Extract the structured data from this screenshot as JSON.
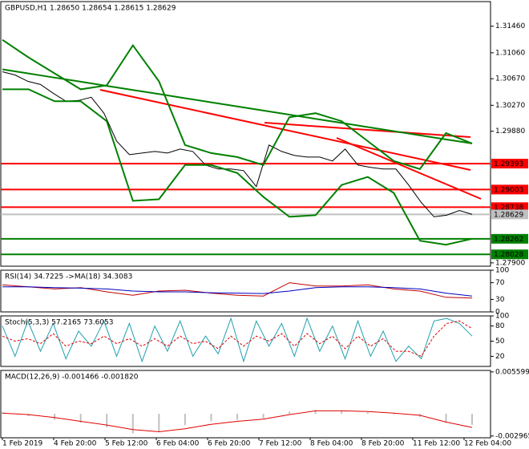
{
  "chart_data": [
    {
      "type": "line",
      "title": "GBPUSD,H1  1.28650 1.28654 1.28615 1.28629",
      "ylim": [
        1.2785,
        1.3183
      ],
      "yticks": [
        {
          "value": 1.3146,
          "label": "1.31460"
        },
        {
          "value": 1.3106,
          "label": "1.31060"
        },
        {
          "value": 1.3067,
          "label": "1.30670"
        },
        {
          "value": 1.3027,
          "label": "1.30270"
        },
        {
          "value": 1.2988,
          "label": "1.29880"
        },
        {
          "value": 1.279,
          "label": "1.27900"
        }
      ],
      "x_labels": [
        "1 Feb 2019",
        "4 Feb 20:00",
        "5 Feb 12:00",
        "6 Feb 04:00",
        "6 Feb 20:00",
        "7 Feb 12:00",
        "8 Feb 04:00",
        "8 Feb 20:00",
        "11 Feb 12:00",
        "12 Feb 04:00"
      ],
      "levels": [
        {
          "value": 1.29393,
          "color": "#ff0000"
        },
        {
          "value": 1.29003,
          "color": "#ff0000"
        },
        {
          "value": 1.28738,
          "color": "#ff0000"
        },
        {
          "value": 1.28629,
          "color": "#c0c0c0"
        },
        {
          "value": 1.28262,
          "color": "#008000"
        },
        {
          "value": 1.28028,
          "color": "#008000"
        }
      ],
      "series": [
        {
          "name": "Close",
          "color": "#000000",
          "values": [
            1.30775,
            1.30727,
            1.30631,
            1.30583,
            1.30451,
            1.30331,
            1.30343,
            1.30391,
            1.30151,
            1.29732,
            1.29528,
            1.29552,
            1.29576,
            1.29552,
            1.29612,
            1.29576,
            1.29372,
            1.29312,
            1.29312,
            1.29288,
            1.29048,
            1.29672,
            1.29576,
            1.29516,
            1.29492,
            1.29492,
            1.29432,
            1.29612,
            1.29372,
            1.29336,
            1.29312,
            1.29312,
            1.29072,
            1.28809,
            1.28593,
            1.28617,
            1.28688,
            1.28629
          ]
        },
        {
          "name": "BB upper",
          "color": "#008000",
          "values": [
            1.31255,
            1.30991,
            1.30751,
            1.30511,
            1.30571,
            1.31171,
            1.30631,
            1.29672,
            1.29552,
            1.29492,
            1.29372,
            1.30091,
            1.30151,
            1.30032,
            1.29732,
            1.29432,
            1.29312,
            1.29852,
            1.29696
          ]
        },
        {
          "name": "BB lower",
          "color": "#008000",
          "values": [
            1.30511,
            1.30511,
            1.30331,
            1.30331,
            1.30032,
            1.28833,
            1.28857,
            1.29372,
            1.29372,
            1.29252,
            1.28892,
            1.28593,
            1.28617,
            1.29072,
            1.29192,
            1.28952,
            1.28233,
            1.28173,
            1.28262
          ]
        },
        {
          "name": "MA",
          "color": "#008000",
          "values": [
            1.30811,
            1.30749,
            1.30687,
            1.30625,
            1.30563,
            1.30501,
            1.30439,
            1.30377,
            1.30315,
            1.30253,
            1.30191,
            1.30129,
            1.30067,
            1.30005,
            1.29943,
            1.29881,
            1.29819,
            1.29757,
            1.29696
          ]
        }
      ]
    },
    {
      "type": "line",
      "title": "RSI(14) 34.7225  ->MA(18) 34.3083",
      "ylim": [
        0,
        100
      ],
      "yticks": [
        100,
        70,
        30,
        0
      ],
      "series": [
        {
          "name": "RSI",
          "color": "#c00000",
          "values": [
            65,
            60,
            55,
            58,
            48,
            40,
            50,
            52,
            45,
            40,
            38,
            70,
            62,
            62,
            65,
            55,
            50,
            35,
            33
          ]
        },
        {
          "name": "MA",
          "color": "#0000c0",
          "values": [
            60,
            60,
            58,
            57,
            55,
            50,
            48,
            48,
            46,
            45,
            44,
            50,
            58,
            60,
            60,
            58,
            55,
            45,
            38
          ]
        }
      ]
    },
    {
      "type": "line",
      "title": "Stoch(5,3,3) 57.2165 73.6053",
      "ylim": [
        0,
        100
      ],
      "yticks": [
        100,
        80,
        50,
        20
      ],
      "series": [
        {
          "name": "Main",
          "color": "#20a0b0",
          "values": [
            80,
            20,
            90,
            30,
            85,
            15,
            70,
            40,
            90,
            20,
            85,
            10,
            80,
            30,
            90,
            20,
            60,
            25,
            95,
            10,
            90,
            40,
            85,
            20,
            95,
            30,
            80,
            15,
            90,
            20,
            70,
            10,
            40,
            15,
            90,
            95,
            85,
            60
          ]
        },
        {
          "name": "Signal",
          "color": "#e00000",
          "dash": true,
          "values": [
            60,
            50,
            55,
            45,
            65,
            40,
            50,
            45,
            60,
            45,
            55,
            40,
            55,
            40,
            60,
            45,
            50,
            35,
            60,
            40,
            60,
            50,
            65,
            40,
            65,
            45,
            60,
            35,
            60,
            40,
            55,
            30,
            30,
            20,
            60,
            85,
            90,
            75
          ]
        }
      ]
    },
    {
      "type": "bar",
      "title": "MACD(12,26,9) -0.001466 -0.001820",
      "ylim": [
        -0.0032,
        0.0058
      ],
      "yticks": [
        0.005599,
        -0.002965
      ],
      "series": [
        {
          "name": "MACD",
          "color": "#c0c0c0",
          "bars": true,
          "values": [
            0.0002,
            -0.0003,
            -0.0008,
            -0.0012,
            -0.0018,
            -0.0026,
            -0.0024,
            -0.0015,
            -0.001,
            -0.0008,
            -0.0006,
            0.0003,
            0.0005,
            0.0004,
            0.0002,
            -0.0001,
            -0.0004,
            -0.0012,
            -0.001466
          ]
        },
        {
          "name": "Signal",
          "color": "#e00000",
          "values": [
            0.0001,
            -0.0001,
            -0.0005,
            -0.001,
            -0.0015,
            -0.0021,
            -0.0024,
            -0.002,
            -0.0014,
            -0.001,
            -0.0007,
            -0.0001,
            0.0004,
            0.0004,
            0.0003,
            0.0001,
            -0.0002,
            -0.0011,
            -0.00182
          ]
        }
      ]
    }
  ]
}
